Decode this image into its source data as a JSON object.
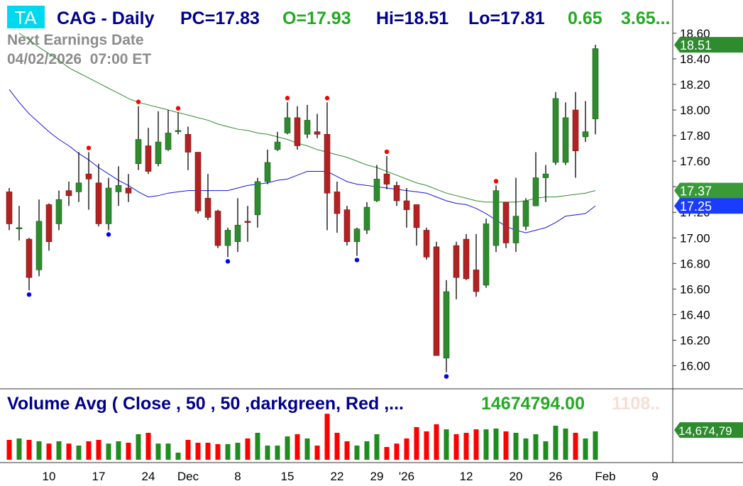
{
  "badge": "TA",
  "chart_data": [
    {
      "type": "candlestick",
      "title": "CAG - Daily",
      "stats": [
        {
          "text": "PC=17.83",
          "color": "#00008b"
        },
        {
          "text": "O=17.93",
          "color": "#22aa22"
        },
        {
          "text": "Hi=18.51",
          "color": "#00008b"
        },
        {
          "text": "Lo=17.81",
          "color": "#00008b"
        },
        {
          "text": "0.65",
          "color": "#22aa22"
        },
        {
          "text": "3.65...",
          "color": "#22aa22"
        }
      ],
      "annotation": [
        "Next Earnings Date",
        "04/02/2026  07:00 ET"
      ],
      "categories": [
        null,
        null,
        null,
        null,
        "10",
        null,
        null,
        null,
        null,
        "17",
        null,
        null,
        null,
        null,
        "24",
        null,
        null,
        null,
        "Dec",
        null,
        null,
        null,
        null,
        "8",
        null,
        null,
        null,
        null,
        "15",
        null,
        null,
        null,
        null,
        "22",
        null,
        null,
        null,
        "29",
        null,
        null,
        "'26",
        null,
        null,
        null,
        null,
        null,
        "12",
        null,
        null,
        null,
        null,
        "20",
        null,
        null,
        null,
        "26",
        null,
        null,
        null,
        null,
        "Feb",
        null,
        null,
        null,
        null,
        "9"
      ],
      "open": [
        17.36,
        17.07,
        16.99,
        16.75,
        17.26,
        17.11,
        17.37,
        17.36,
        17.5,
        17.43,
        17.11,
        17.36,
        17.39,
        17.58,
        17.72,
        17.58,
        17.69,
        17.83,
        17.81,
        17.67,
        17.31,
        17.21,
        16.94,
        16.97,
        17.13,
        17.18,
        17.44,
        17.69,
        17.82,
        17.94,
        17.81,
        17.83,
        17.81,
        17.36,
        17.22,
        16.97,
        17.06,
        17.29,
        17.5,
        17.41,
        17.29,
        17.26,
        17.06,
        16.93,
        16.06,
        16.94,
        16.99,
        16.75,
        16.63,
        16.94,
        17.28,
        16.96,
        17.09,
        17.25,
        17.47,
        17.59,
        17.59,
        18.0,
        17.79,
        17.93,
        null,
        null,
        null,
        null,
        null,
        null
      ],
      "high": [
        17.39,
        17.25,
        17.0,
        17.3,
        17.27,
        17.37,
        17.44,
        17.67,
        17.67,
        17.58,
        17.47,
        17.56,
        17.5,
        18.03,
        17.86,
        17.99,
        18.0,
        17.98,
        17.87,
        17.67,
        17.5,
        17.22,
        17.08,
        17.31,
        17.25,
        17.47,
        17.69,
        17.83,
        18.06,
        18.03,
        18.04,
        17.97,
        18.06,
        17.44,
        17.25,
        17.08,
        17.28,
        17.57,
        17.64,
        17.44,
        17.39,
        17.26,
        17.08,
        16.97,
        16.67,
        16.97,
        17.03,
        17.03,
        17.15,
        17.41,
        17.28,
        17.47,
        17.31,
        17.67,
        17.57,
        18.14,
        18.06,
        18.14,
        18.07,
        18.51,
        null,
        null,
        null,
        null,
        null,
        null
      ],
      "low": [
        17.06,
        16.98,
        16.59,
        16.7,
        16.9,
        17.06,
        17.25,
        17.28,
        17.22,
        17.09,
        17.06,
        17.25,
        17.28,
        17.53,
        17.5,
        17.56,
        17.68,
        17.81,
        17.53,
        17.19,
        17.14,
        16.92,
        16.85,
        16.89,
        16.97,
        17.08,
        17.42,
        17.68,
        17.81,
        17.69,
        17.78,
        17.78,
        17.06,
        17.04,
        16.94,
        16.86,
        17.03,
        17.28,
        17.38,
        17.25,
        17.08,
        16.94,
        16.83,
        16.08,
        15.95,
        16.52,
        16.67,
        16.54,
        16.61,
        16.89,
        16.92,
        16.89,
        17.06,
        17.25,
        17.28,
        17.57,
        17.57,
        17.47,
        17.75,
        17.81,
        null,
        null,
        null,
        null,
        null,
        null
      ],
      "close": [
        17.11,
        17.08,
        16.69,
        17.13,
        16.97,
        17.3,
        17.33,
        17.43,
        17.46,
        17.11,
        17.39,
        17.41,
        17.35,
        17.77,
        17.52,
        17.75,
        17.82,
        17.84,
        17.67,
        17.21,
        17.16,
        16.94,
        17.06,
        17.1,
        17.12,
        17.44,
        17.59,
        17.75,
        17.94,
        17.72,
        17.92,
        17.81,
        17.35,
        17.19,
        16.97,
        17.07,
        17.24,
        17.46,
        17.42,
        17.29,
        17.22,
        17.08,
        16.85,
        16.08,
        16.58,
        16.69,
        16.68,
        16.58,
        17.11,
        17.37,
        16.96,
        17.17,
        17.29,
        17.47,
        17.5,
        18.09,
        17.94,
        17.68,
        17.83,
        18.48,
        null,
        null,
        null,
        null,
        null,
        null
      ],
      "up_color": "#2e8b2e",
      "down_color": "#b22222",
      "series": [
        {
          "color": "#1515e0",
          "values": [
            18.16,
            18.06,
            17.97,
            17.9,
            17.83,
            17.77,
            17.72,
            17.66,
            17.61,
            17.55,
            17.5,
            17.45,
            17.41,
            17.36,
            17.32,
            17.33,
            17.35,
            17.36,
            17.37,
            17.37,
            17.37,
            17.37,
            17.37,
            17.39,
            17.41,
            17.42,
            17.43,
            17.45,
            17.46,
            17.49,
            17.52,
            17.52,
            17.52,
            17.48,
            17.44,
            17.42,
            17.41,
            17.4,
            17.39,
            17.38,
            17.37,
            17.36,
            17.35,
            17.32,
            17.29,
            17.27,
            17.26,
            17.23,
            17.19,
            17.14,
            17.09,
            17.06,
            17.04,
            17.06,
            17.08,
            17.12,
            17.17,
            17.18,
            17.19,
            17.25,
            null,
            null,
            null,
            null,
            null,
            null
          ]
        },
        {
          "color": "#2e8b2e",
          "values": [
            null,
            18.6,
            18.55,
            18.49,
            18.44,
            18.39,
            18.33,
            18.29,
            18.25,
            18.21,
            18.17,
            18.13,
            18.09,
            18.06,
            18.04,
            18.02,
            18.0,
            17.98,
            17.96,
            17.94,
            17.92,
            17.89,
            17.87,
            17.85,
            17.84,
            17.82,
            17.81,
            17.79,
            17.77,
            17.74,
            17.72,
            17.69,
            17.67,
            17.65,
            17.63,
            17.6,
            17.57,
            17.55,
            17.52,
            17.49,
            17.46,
            17.43,
            17.41,
            17.38,
            17.35,
            17.33,
            17.31,
            17.29,
            17.28,
            17.28,
            17.28,
            17.28,
            17.29,
            17.31,
            17.32,
            17.32,
            17.33,
            17.34,
            17.35,
            17.37,
            null,
            null,
            null,
            null,
            null,
            null
          ]
        }
      ],
      "swing_highs": [
        null,
        null,
        null,
        null,
        null,
        null,
        null,
        null,
        17.67,
        null,
        null,
        null,
        null,
        18.03,
        null,
        null,
        null,
        17.98,
        null,
        null,
        null,
        null,
        null,
        null,
        null,
        null,
        null,
        null,
        18.06,
        null,
        null,
        null,
        18.06,
        null,
        null,
        null,
        null,
        null,
        17.64,
        null,
        null,
        null,
        null,
        null,
        null,
        null,
        null,
        null,
        null,
        17.41,
        null,
        null,
        null,
        null,
        null,
        null,
        null,
        null,
        null,
        null,
        null,
        null,
        null,
        null,
        null,
        null
      ],
      "swing_lows": [
        null,
        null,
        16.59,
        null,
        null,
        null,
        null,
        null,
        null,
        null,
        17.06,
        null,
        null,
        null,
        null,
        null,
        null,
        null,
        null,
        null,
        null,
        null,
        16.85,
        null,
        null,
        null,
        null,
        null,
        null,
        null,
        null,
        null,
        null,
        null,
        null,
        16.86,
        null,
        null,
        null,
        null,
        null,
        null,
        null,
        null,
        15.95,
        null,
        null,
        null,
        null,
        null,
        null,
        null,
        null,
        null,
        null,
        null,
        null,
        null,
        null,
        null,
        null,
        null,
        null,
        null,
        null,
        null
      ],
      "swing_high_color": "#ff0000",
      "swing_low_color": "#0000ff",
      "ylim": [
        15.82,
        18.86
      ],
      "yticks": [
        {
          "value": 16,
          "label": "16.00"
        },
        {
          "value": 16.2,
          "label": "16.20"
        },
        {
          "value": 16.4,
          "label": "16.40"
        },
        {
          "value": 16.6,
          "label": "16.60"
        },
        {
          "value": 16.8,
          "label": "16.80"
        },
        {
          "value": 17,
          "label": "17.00"
        },
        {
          "value": 17.2,
          "label": "17.20"
        },
        {
          "value": 17.4,
          "label": "17.40"
        },
        {
          "value": 17.6,
          "label": "17.60"
        },
        {
          "value": 17.8,
          "label": "17.80"
        },
        {
          "value": 18,
          "label": "18.00"
        },
        {
          "value": 18.2,
          "label": "18.20"
        },
        {
          "value": 18.4,
          "label": "18.40"
        },
        {
          "value": 18.6,
          "label": "18.60"
        }
      ],
      "price_tags": [
        {
          "value": 18.51,
          "color": "#2e8b2e"
        },
        {
          "value": 17.37,
          "color": "#3a9a3a"
        },
        {
          "value": 17.25,
          "color": "#1a3cff"
        }
      ]
    },
    {
      "type": "bar",
      "title": "Volume Avg ( Close , 50 , 50 ,darkgreen, Red ,...",
      "value_text": "14674794.00",
      "faded_text": "1108..",
      "values": [
        9800000,
        10500000,
        9800000,
        9100000,
        8000000,
        9100000,
        8000000,
        7000000,
        9100000,
        9800000,
        8000000,
        9100000,
        8400000,
        12600000,
        13300000,
        8000000,
        8000000,
        3500000,
        9800000,
        8400000,
        8400000,
        7700000,
        7700000,
        8400000,
        10500000,
        13300000,
        7000000,
        7000000,
        11500000,
        12600000,
        10500000,
        7000000,
        22700000,
        13300000,
        9100000,
        7000000,
        9100000,
        12600000,
        6300000,
        8000000,
        10500000,
        16100000,
        14000000,
        17500000,
        15000000,
        12600000,
        13300000,
        15000000,
        15000000,
        15400000,
        14000000,
        13300000,
        10500000,
        12600000,
        9100000,
        16800000,
        15400000,
        13300000,
        10500000,
        14000000,
        null,
        null,
        null,
        null,
        null,
        null
      ],
      "up_color": "#1e8c1e",
      "down_color": "#ff0000",
      "ylim": [
        0,
        35000000
      ],
      "tag": {
        "value": 14674794,
        "label": "14,674,79",
        "color": "#2e8b2e"
      }
    }
  ]
}
